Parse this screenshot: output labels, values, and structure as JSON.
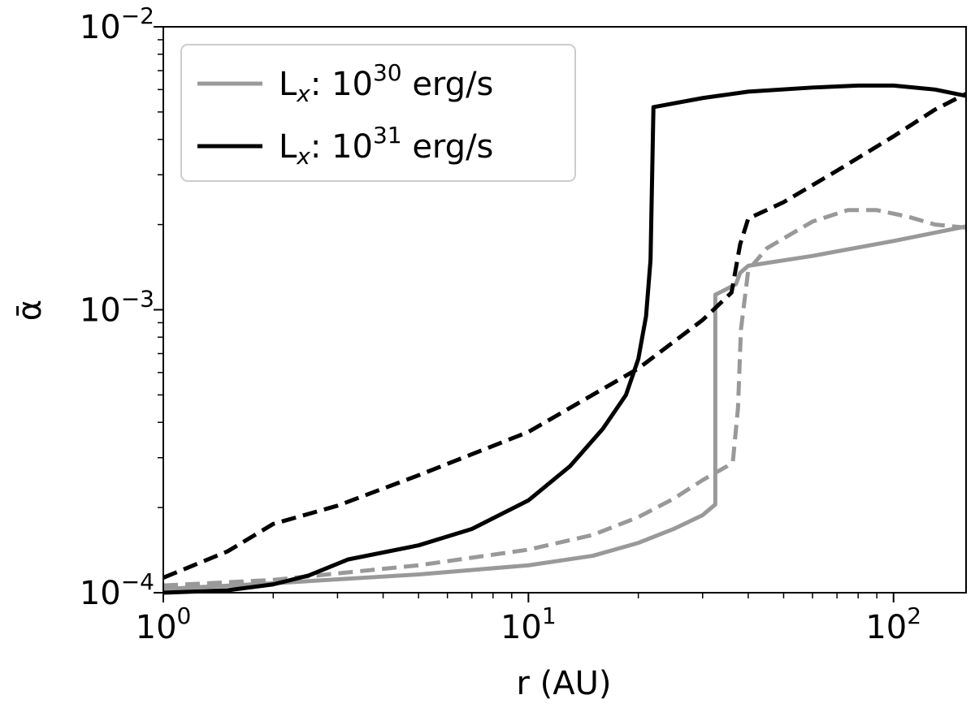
{
  "chart_data": {
    "type": "line",
    "xscale": "log",
    "yscale": "log",
    "xlabel": "r (AU)",
    "ylabel": "ᾱ",
    "xlim": [
      1,
      158
    ],
    "ylim": [
      0.0001,
      0.01
    ],
    "xticks": [
      {
        "base": "10",
        "exp": "0"
      },
      {
        "base": "10",
        "exp": "1"
      },
      {
        "base": "10",
        "exp": "2"
      }
    ],
    "yticks": [
      {
        "base": "10",
        "exp": "−4"
      },
      {
        "base": "10",
        "exp": "−3"
      },
      {
        "base": "10",
        "exp": "−2"
      }
    ],
    "legend": {
      "position": "upper-left",
      "entries": [
        {
          "label_prefix": "L",
          "label_sub": "x",
          "label_mid": ": 10",
          "label_sup": "30",
          "label_suffix": " erg/s",
          "color": "#999999",
          "style": "solid"
        },
        {
          "label_prefix": "L",
          "label_sub": "x",
          "label_mid": ": 10",
          "label_sup": "31",
          "label_suffix": " erg/s",
          "color": "#000000",
          "style": "solid"
        }
      ]
    },
    "series": [
      {
        "name": "Lx 1e30 solid",
        "color": "#999999",
        "dash": false,
        "points": [
          [
            1,
            0.000103
          ],
          [
            2,
            0.000108
          ],
          [
            5,
            0.000116
          ],
          [
            10,
            0.000125
          ],
          [
            15,
            0.000135
          ],
          [
            20,
            0.00015
          ],
          [
            25,
            0.000168
          ],
          [
            30,
            0.000188
          ],
          [
            32.5,
            0.000205
          ],
          [
            32.5,
            0.00113
          ],
          [
            37,
            0.00123
          ],
          [
            38,
            0.00135
          ],
          [
            40,
            0.00143
          ],
          [
            60,
            0.00155
          ],
          [
            100,
            0.00175
          ],
          [
            158,
            0.00197
          ]
        ]
      },
      {
        "name": "Lx 1e30 dashed",
        "color": "#999999",
        "dash": true,
        "points": [
          [
            1,
            0.000106
          ],
          [
            2,
            0.000111
          ],
          [
            5,
            0.000125
          ],
          [
            10,
            0.000142
          ],
          [
            15,
            0.00016
          ],
          [
            20,
            0.000185
          ],
          [
            25,
            0.000215
          ],
          [
            30,
            0.00025
          ],
          [
            35,
            0.00028
          ],
          [
            36.3,
            0.00029
          ],
          [
            37.5,
            0.00045
          ],
          [
            38.2,
            0.00085
          ],
          [
            40,
            0.00138
          ],
          [
            45,
            0.00165
          ],
          [
            60,
            0.00205
          ],
          [
            75,
            0.00225
          ],
          [
            90,
            0.00225
          ],
          [
            110,
            0.00213
          ],
          [
            130,
            0.002
          ],
          [
            158,
            0.00195
          ]
        ]
      },
      {
        "name": "Lx 1e31 solid",
        "color": "#000000",
        "dash": false,
        "points": [
          [
            1,
            0.0001
          ],
          [
            1.5,
            0.000102
          ],
          [
            2,
            0.000107
          ],
          [
            2.5,
            0.000115
          ],
          [
            3.2,
            0.000131
          ],
          [
            5,
            0.000147
          ],
          [
            7,
            0.000168
          ],
          [
            10,
            0.000212
          ],
          [
            13,
            0.00028
          ],
          [
            16,
            0.00038
          ],
          [
            18.5,
            0.0005
          ],
          [
            20,
            0.00067
          ],
          [
            21,
            0.00095
          ],
          [
            21.6,
            0.0015
          ],
          [
            22,
            0.0052
          ],
          [
            30,
            0.0056
          ],
          [
            40,
            0.0059
          ],
          [
            60,
            0.0061
          ],
          [
            80,
            0.0062
          ],
          [
            100,
            0.0062
          ],
          [
            130,
            0.006
          ],
          [
            158,
            0.0057
          ]
        ]
      },
      {
        "name": "Lx 1e31 dashed",
        "color": "#000000",
        "dash": true,
        "points": [
          [
            1,
            0.000113
          ],
          [
            1.5,
            0.00014
          ],
          [
            2,
            0.000175
          ],
          [
            3,
            0.000203
          ],
          [
            5,
            0.00026
          ],
          [
            10,
            0.00037
          ],
          [
            20,
            0.00062
          ],
          [
            30,
            0.00092
          ],
          [
            36,
            0.00115
          ],
          [
            38,
            0.0017
          ],
          [
            40,
            0.0021
          ],
          [
            50,
            0.0024
          ],
          [
            70,
            0.0031
          ],
          [
            100,
            0.0041
          ],
          [
            130,
            0.0051
          ],
          [
            158,
            0.0058
          ]
        ]
      }
    ]
  }
}
